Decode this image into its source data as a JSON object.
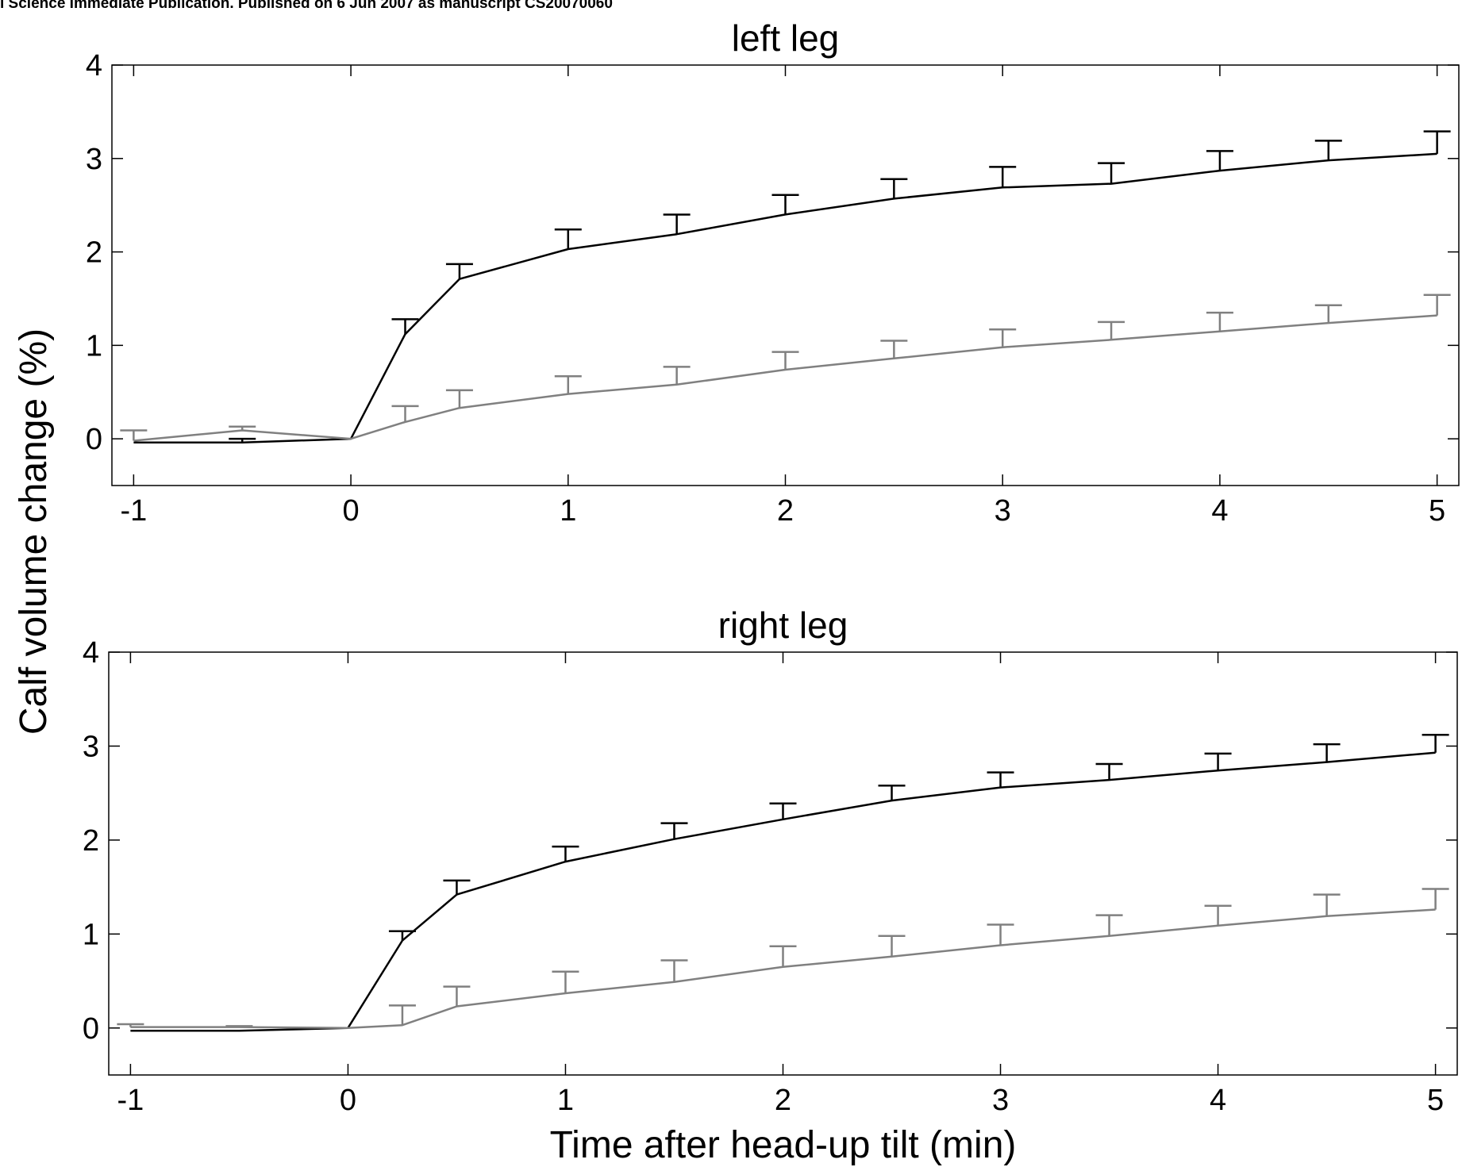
{
  "header": {
    "text": "l Science Immediate Publication. Published on 6 Jun 2007 as manuscript CS20070060"
  },
  "colors": {
    "series_black": "#000000",
    "series_gray": "#808080",
    "axes": "#000000"
  },
  "chart_data": [
    {
      "type": "line",
      "title": "left leg",
      "xlim": [
        -1.1,
        5.1
      ],
      "ylim": [
        -0.5,
        4
      ],
      "xticks": [
        -1,
        0,
        1,
        2,
        3,
        4,
        5
      ],
      "yticks": [
        0,
        1,
        2,
        3,
        4
      ],
      "xlabel": "",
      "ylabel": "",
      "grid": false,
      "series": [
        {
          "color": "#000000",
          "x": [
            -1,
            -0.5,
            0,
            0.25,
            0.5,
            1,
            1.5,
            2,
            2.5,
            3,
            3.5,
            4,
            4.5,
            5
          ],
          "y": [
            -0.04,
            -0.04,
            0.0,
            1.12,
            1.71,
            2.03,
            2.19,
            2.4,
            2.57,
            2.69,
            2.73,
            2.87,
            2.98,
            3.05
          ],
          "err": [
            0.0,
            0.04,
            0.0,
            0.16,
            0.16,
            0.21,
            0.21,
            0.21,
            0.21,
            0.22,
            0.22,
            0.21,
            0.21,
            0.24
          ]
        },
        {
          "color": "#808080",
          "x": [
            -1,
            -0.5,
            0,
            0.25,
            0.5,
            1,
            1.5,
            2,
            2.5,
            3,
            3.5,
            4,
            4.5,
            5
          ],
          "y": [
            -0.02,
            0.09,
            0.0,
            0.18,
            0.33,
            0.48,
            0.58,
            0.74,
            0.86,
            0.98,
            1.06,
            1.15,
            1.24,
            1.32
          ],
          "err": [
            0.11,
            0.04,
            0.0,
            0.17,
            0.19,
            0.19,
            0.19,
            0.19,
            0.19,
            0.19,
            0.19,
            0.2,
            0.19,
            0.22
          ]
        }
      ]
    },
    {
      "type": "line",
      "title": "right leg",
      "xlim": [
        -1.1,
        5.1
      ],
      "ylim": [
        -0.5,
        4
      ],
      "xticks": [
        -1,
        0,
        1,
        2,
        3,
        4,
        5
      ],
      "yticks": [
        0,
        1,
        2,
        3,
        4
      ],
      "xlabel": "Time after head-up tilt (min)",
      "ylabel": "",
      "grid": false,
      "series": [
        {
          "color": "#000000",
          "x": [
            -1,
            -0.5,
            0,
            0.25,
            0.5,
            1,
            1.5,
            2,
            2.5,
            3,
            3.5,
            4,
            4.5,
            5
          ],
          "y": [
            -0.03,
            -0.03,
            0.0,
            0.93,
            1.42,
            1.77,
            2.01,
            2.22,
            2.42,
            2.56,
            2.64,
            2.74,
            2.83,
            2.93
          ],
          "err": [
            0.0,
            0.0,
            0.0,
            0.1,
            0.15,
            0.16,
            0.17,
            0.17,
            0.16,
            0.16,
            0.17,
            0.18,
            0.19,
            0.19
          ]
        },
        {
          "color": "#808080",
          "x": [
            -1,
            -0.5,
            0,
            0.25,
            0.5,
            1,
            1.5,
            2,
            2.5,
            3,
            3.5,
            4,
            4.5,
            5
          ],
          "y": [
            0.01,
            0.01,
            0.0,
            0.03,
            0.23,
            0.37,
            0.49,
            0.65,
            0.76,
            0.88,
            0.98,
            1.09,
            1.19,
            1.26
          ],
          "err": [
            0.03,
            0.01,
            0.0,
            0.21,
            0.21,
            0.23,
            0.23,
            0.22,
            0.22,
            0.22,
            0.22,
            0.21,
            0.23,
            0.22
          ]
        }
      ]
    }
  ],
  "shared": {
    "ylabel": "Calf volume change (%)"
  }
}
